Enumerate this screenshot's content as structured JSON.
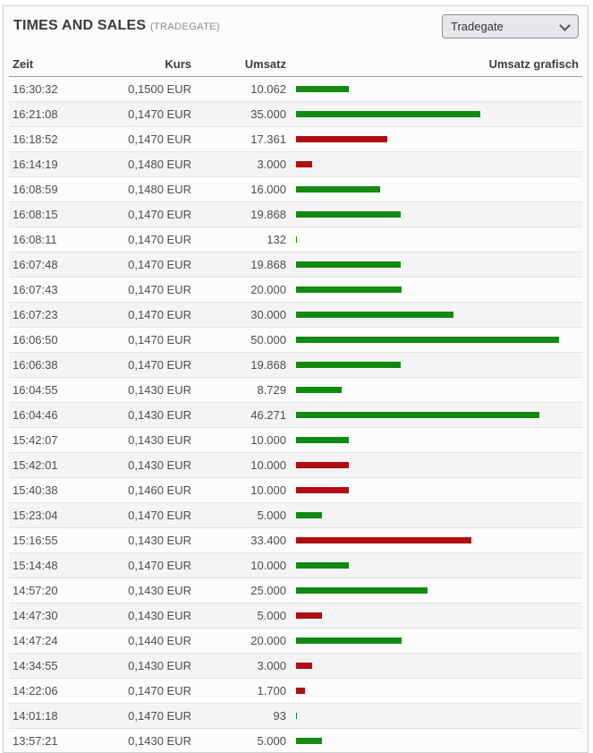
{
  "header": {
    "title": "TIMES AND SALES",
    "subtitle": "(TRADEGATE)",
    "exchange_select": {
      "value": "Tradegate"
    }
  },
  "table": {
    "columns": {
      "zeit": "Zeit",
      "kurs": "Kurs",
      "umsatz": "Umsatz",
      "grafisch": "Umsatz grafisch"
    },
    "max_volume": 50000,
    "rows": [
      {
        "zeit": "16:30:32",
        "kurs": "0,1500 EUR",
        "umsatz": "10.062",
        "volume": 10062,
        "direction": "up"
      },
      {
        "zeit": "16:21:08",
        "kurs": "0,1470 EUR",
        "umsatz": "35.000",
        "volume": 35000,
        "direction": "up"
      },
      {
        "zeit": "16:18:52",
        "kurs": "0,1470 EUR",
        "umsatz": "17.361",
        "volume": 17361,
        "direction": "down"
      },
      {
        "zeit": "16:14:19",
        "kurs": "0,1480 EUR",
        "umsatz": "3.000",
        "volume": 3000,
        "direction": "down"
      },
      {
        "zeit": "16:08:59",
        "kurs": "0,1480 EUR",
        "umsatz": "16.000",
        "volume": 16000,
        "direction": "up"
      },
      {
        "zeit": "16:08:15",
        "kurs": "0,1470 EUR",
        "umsatz": "19.868",
        "volume": 19868,
        "direction": "up"
      },
      {
        "zeit": "16:08:11",
        "kurs": "0,1470 EUR",
        "umsatz": "132",
        "volume": 132,
        "direction": "up"
      },
      {
        "zeit": "16:07:48",
        "kurs": "0,1470 EUR",
        "umsatz": "19.868",
        "volume": 19868,
        "direction": "up"
      },
      {
        "zeit": "16:07:43",
        "kurs": "0,1470 EUR",
        "umsatz": "20.000",
        "volume": 20000,
        "direction": "up"
      },
      {
        "zeit": "16:07:23",
        "kurs": "0,1470 EUR",
        "umsatz": "30.000",
        "volume": 30000,
        "direction": "up"
      },
      {
        "zeit": "16:06:50",
        "kurs": "0,1470 EUR",
        "umsatz": "50.000",
        "volume": 50000,
        "direction": "up"
      },
      {
        "zeit": "16:06:38",
        "kurs": "0,1470 EUR",
        "umsatz": "19.868",
        "volume": 19868,
        "direction": "up"
      },
      {
        "zeit": "16:04:55",
        "kurs": "0,1430 EUR",
        "umsatz": "8.729",
        "volume": 8729,
        "direction": "up"
      },
      {
        "zeit": "16:04:46",
        "kurs": "0,1430 EUR",
        "umsatz": "46.271",
        "volume": 46271,
        "direction": "up"
      },
      {
        "zeit": "15:42:07",
        "kurs": "0,1430 EUR",
        "umsatz": "10.000",
        "volume": 10000,
        "direction": "up"
      },
      {
        "zeit": "15:42:01",
        "kurs": "0,1430 EUR",
        "umsatz": "10.000",
        "volume": 10000,
        "direction": "down"
      },
      {
        "zeit": "15:40:38",
        "kurs": "0,1460 EUR",
        "umsatz": "10.000",
        "volume": 10000,
        "direction": "down"
      },
      {
        "zeit": "15:23:04",
        "kurs": "0,1470 EUR",
        "umsatz": "5.000",
        "volume": 5000,
        "direction": "up"
      },
      {
        "zeit": "15:16:55",
        "kurs": "0,1430 EUR",
        "umsatz": "33.400",
        "volume": 33400,
        "direction": "down"
      },
      {
        "zeit": "15:14:48",
        "kurs": "0,1470 EUR",
        "umsatz": "10.000",
        "volume": 10000,
        "direction": "up"
      },
      {
        "zeit": "14:57:20",
        "kurs": "0,1430 EUR",
        "umsatz": "25.000",
        "volume": 25000,
        "direction": "up"
      },
      {
        "zeit": "14:47:30",
        "kurs": "0,1430 EUR",
        "umsatz": "5.000",
        "volume": 5000,
        "direction": "down"
      },
      {
        "zeit": "14:47:24",
        "kurs": "0,1440 EUR",
        "umsatz": "20.000",
        "volume": 20000,
        "direction": "up"
      },
      {
        "zeit": "14:34:55",
        "kurs": "0,1430 EUR",
        "umsatz": "3.000",
        "volume": 3000,
        "direction": "down"
      },
      {
        "zeit": "14:22:06",
        "kurs": "0,1470 EUR",
        "umsatz": "1.700",
        "volume": 1700,
        "direction": "down"
      },
      {
        "zeit": "14:01:18",
        "kurs": "0,1470 EUR",
        "umsatz": "93",
        "volume": 93,
        "direction": "up"
      },
      {
        "zeit": "13:57:21",
        "kurs": "0,1430 EUR",
        "umsatz": "5.000",
        "volume": 5000,
        "direction": "up"
      }
    ]
  },
  "colors": {
    "up": "#118a11",
    "down": "#b00e13"
  }
}
